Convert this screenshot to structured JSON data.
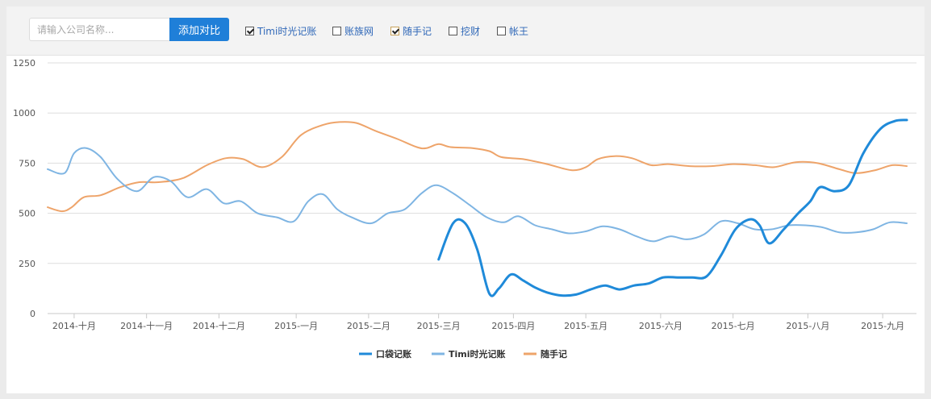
{
  "toolbar": {
    "search_placeholder": "请输入公司名称...",
    "add_button_label": "添加对比",
    "checkboxes": [
      {
        "label": "Timi时光记账",
        "checked": true
      },
      {
        "label": "账族网",
        "checked": false
      },
      {
        "label": "随手记",
        "checked": true
      },
      {
        "label": "挖财",
        "checked": false
      },
      {
        "label": "帐王",
        "checked": false
      }
    ]
  },
  "chart_data": {
    "type": "line",
    "title": "",
    "xlabel": "",
    "ylabel": "",
    "ylim": [
      0,
      1250
    ],
    "yticks": [
      0,
      250,
      500,
      750,
      1000,
      1250
    ],
    "grid": true,
    "legend_position": "bottom",
    "xlim": [
      "2014-09-20",
      "2015-09-15"
    ],
    "categories": [
      "2014-十月",
      "2014-十一月",
      "2014-十二月",
      "2015-一月",
      "2015-二月",
      "2015-三月",
      "2015-四月",
      "2015-五月",
      "2015-六月",
      "2015-七月",
      "2015-八月",
      "2015-九月"
    ],
    "category_dates": [
      "2014-10-01",
      "2014-10-31",
      "2014-11-30",
      "2015-01-01",
      "2015-01-31",
      "2015-03-01",
      "2015-04-01",
      "2015-05-01",
      "2015-06-01",
      "2015-07-01",
      "2015-08-01",
      "2015-09-01"
    ],
    "series": [
      {
        "name": "口袋记账",
        "color": "#1f8ad9",
        "width": 3,
        "points": [
          [
            "2015-03-01",
            270
          ],
          [
            "2015-03-07",
            450
          ],
          [
            "2015-03-12",
            450
          ],
          [
            "2015-03-17",
            320
          ],
          [
            "2015-03-22",
            100
          ],
          [
            "2015-03-26",
            125
          ],
          [
            "2015-03-31",
            195
          ],
          [
            "2015-04-05",
            165
          ],
          [
            "2015-04-10",
            130
          ],
          [
            "2015-04-15",
            105
          ],
          [
            "2015-04-21",
            90
          ],
          [
            "2015-04-27",
            95
          ],
          [
            "2015-05-03",
            120
          ],
          [
            "2015-05-09",
            140
          ],
          [
            "2015-05-15",
            120
          ],
          [
            "2015-05-21",
            140
          ],
          [
            "2015-05-27",
            150
          ],
          [
            "2015-06-02",
            180
          ],
          [
            "2015-06-08",
            180
          ],
          [
            "2015-06-14",
            180
          ],
          [
            "2015-06-20",
            185
          ],
          [
            "2015-06-26",
            290
          ],
          [
            "2015-07-02",
            420
          ],
          [
            "2015-07-08",
            470
          ],
          [
            "2015-07-12",
            440
          ],
          [
            "2015-07-16",
            350
          ],
          [
            "2015-07-22",
            420
          ],
          [
            "2015-07-28",
            500
          ],
          [
            "2015-08-02",
            560
          ],
          [
            "2015-08-06",
            630
          ],
          [
            "2015-08-12",
            610
          ],
          [
            "2015-08-18",
            640
          ],
          [
            "2015-08-24",
            800
          ],
          [
            "2015-08-31",
            920
          ],
          [
            "2015-09-06",
            960
          ],
          [
            "2015-09-11",
            965
          ]
        ]
      },
      {
        "name": "Timi时光记账",
        "color": "#7fb5e3",
        "width": 2,
        "points": [
          [
            "2014-09-20",
            720
          ],
          [
            "2014-09-27",
            700
          ],
          [
            "2014-10-01",
            800
          ],
          [
            "2014-10-06",
            825
          ],
          [
            "2014-10-12",
            780
          ],
          [
            "2014-10-19",
            670
          ],
          [
            "2014-10-27",
            610
          ],
          [
            "2014-11-03",
            680
          ],
          [
            "2014-11-10",
            660
          ],
          [
            "2014-11-17",
            580
          ],
          [
            "2014-11-25",
            620
          ],
          [
            "2014-12-02",
            550
          ],
          [
            "2014-12-09",
            560
          ],
          [
            "2014-12-16",
            500
          ],
          [
            "2014-12-24",
            480
          ],
          [
            "2014-12-31",
            460
          ],
          [
            "2015-01-06",
            560
          ],
          [
            "2015-01-12",
            595
          ],
          [
            "2015-01-18",
            520
          ],
          [
            "2015-01-24",
            480
          ],
          [
            "2015-02-01",
            450
          ],
          [
            "2015-02-08",
            500
          ],
          [
            "2015-02-15",
            520
          ],
          [
            "2015-02-22",
            600
          ],
          [
            "2015-02-28",
            640
          ],
          [
            "2015-03-07",
            600
          ],
          [
            "2015-03-14",
            540
          ],
          [
            "2015-03-21",
            480
          ],
          [
            "2015-03-28",
            455
          ],
          [
            "2015-04-03",
            485
          ],
          [
            "2015-04-10",
            440
          ],
          [
            "2015-04-17",
            420
          ],
          [
            "2015-04-24",
            400
          ],
          [
            "2015-05-01",
            410
          ],
          [
            "2015-05-08",
            435
          ],
          [
            "2015-05-15",
            420
          ],
          [
            "2015-05-22",
            385
          ],
          [
            "2015-05-29",
            360
          ],
          [
            "2015-06-05",
            385
          ],
          [
            "2015-06-12",
            370
          ],
          [
            "2015-06-19",
            395
          ],
          [
            "2015-06-26",
            460
          ],
          [
            "2015-07-03",
            450
          ],
          [
            "2015-07-10",
            420
          ],
          [
            "2015-07-17",
            420
          ],
          [
            "2015-07-24",
            440
          ],
          [
            "2015-07-31",
            440
          ],
          [
            "2015-08-07",
            430
          ],
          [
            "2015-08-14",
            405
          ],
          [
            "2015-08-21",
            405
          ],
          [
            "2015-08-28",
            420
          ],
          [
            "2015-09-04",
            455
          ],
          [
            "2015-09-11",
            450
          ]
        ]
      },
      {
        "name": "随手记",
        "color": "#eea46a",
        "width": 2,
        "points": [
          [
            "2014-09-20",
            530
          ],
          [
            "2014-09-26",
            510
          ],
          [
            "2014-09-30",
            530
          ],
          [
            "2014-10-05",
            580
          ],
          [
            "2014-10-12",
            590
          ],
          [
            "2014-10-20",
            630
          ],
          [
            "2014-10-28",
            655
          ],
          [
            "2014-11-05",
            655
          ],
          [
            "2014-11-15",
            675
          ],
          [
            "2014-11-25",
            740
          ],
          [
            "2014-12-03",
            775
          ],
          [
            "2014-12-10",
            770
          ],
          [
            "2014-12-18",
            730
          ],
          [
            "2014-12-26",
            780
          ],
          [
            "2015-01-03",
            890
          ],
          [
            "2015-01-12",
            940
          ],
          [
            "2015-01-19",
            955
          ],
          [
            "2015-01-26",
            950
          ],
          [
            "2015-02-03",
            910
          ],
          [
            "2015-02-12",
            870
          ],
          [
            "2015-02-20",
            830
          ],
          [
            "2015-02-24",
            825
          ],
          [
            "2015-03-01",
            845
          ],
          [
            "2015-03-06",
            830
          ],
          [
            "2015-03-15",
            825
          ],
          [
            "2015-03-22",
            810
          ],
          [
            "2015-03-27",
            780
          ],
          [
            "2015-04-05",
            770
          ],
          [
            "2015-04-15",
            745
          ],
          [
            "2015-04-25",
            715
          ],
          [
            "2015-05-01",
            730
          ],
          [
            "2015-05-06",
            770
          ],
          [
            "2015-05-13",
            785
          ],
          [
            "2015-05-20",
            775
          ],
          [
            "2015-05-28",
            740
          ],
          [
            "2015-06-04",
            745
          ],
          [
            "2015-06-13",
            735
          ],
          [
            "2015-06-22",
            735
          ],
          [
            "2015-07-01",
            745
          ],
          [
            "2015-07-10",
            740
          ],
          [
            "2015-07-18",
            730
          ],
          [
            "2015-07-27",
            755
          ],
          [
            "2015-08-05",
            750
          ],
          [
            "2015-08-14",
            720
          ],
          [
            "2015-08-21",
            700
          ],
          [
            "2015-08-29",
            715
          ],
          [
            "2015-09-05",
            740
          ],
          [
            "2015-09-11",
            735
          ]
        ]
      }
    ]
  }
}
